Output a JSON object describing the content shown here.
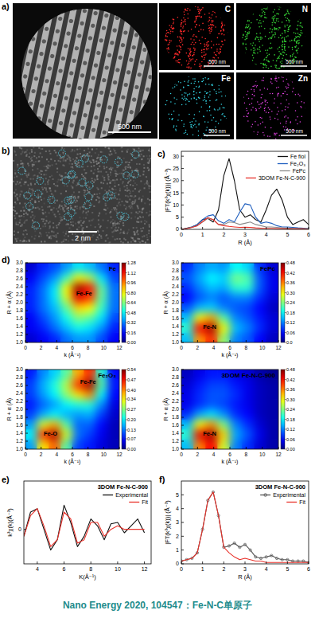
{
  "figure": {
    "panel_a": {
      "label": "a)",
      "scale_bar": "500 nm",
      "maps": [
        {
          "name": "C",
          "color": "#ff2a2a",
          "scale_bar": "500 nm"
        },
        {
          "name": "N",
          "color": "#33cc33",
          "scale_bar": "500 nm"
        },
        {
          "name": "Fe",
          "color": "#33d6e6",
          "scale_bar": "500 nm"
        },
        {
          "name": "Zn",
          "color": "#e040e0",
          "scale_bar": "500 nm"
        }
      ]
    },
    "panel_b": {
      "label": "b)",
      "scale_bar": "2 nm"
    },
    "footer": "Nano Energy 2020, 104547：Fe-N-C单原子"
  },
  "chart_data": [
    {
      "type": "line",
      "panel": "c)",
      "x_label": "R (Å)",
      "y_label": "|FT(k³χ(k))| (Å⁻³)",
      "legend": "upper right",
      "x": [
        0,
        0.25,
        0.5,
        0.75,
        1,
        1.25,
        1.5,
        1.75,
        2,
        2.25,
        2.5,
        2.75,
        3,
        3.25,
        3.5,
        3.75,
        4,
        4.25,
        4.5,
        4.75,
        5,
        5.25,
        5.5,
        5.75,
        6
      ],
      "xlim": [
        0,
        6
      ],
      "xticks": [
        0,
        1,
        2,
        3,
        4,
        5,
        6
      ],
      "ylim": [
        0,
        32
      ],
      "yticks": [
        0,
        5,
        10,
        15,
        20,
        25,
        30
      ],
      "series": [
        {
          "name": "Fe fiol",
          "color": "#111111",
          "values": [
            0,
            0.5,
            1,
            2,
            4,
            4.5,
            3,
            8,
            22,
            29,
            20,
            8,
            5,
            6,
            4,
            3,
            8,
            14,
            16.5,
            12,
            5,
            2,
            3,
            4,
            2
          ]
        },
        {
          "name": "Fe₂O₃",
          "color": "#1f5fbf",
          "values": [
            0,
            0.3,
            1,
            2,
            4,
            5.5,
            6,
            3.5,
            2.5,
            4,
            3,
            7,
            10.5,
            10,
            5,
            2.5,
            3,
            2.5,
            1.5,
            1,
            1,
            0.8,
            0.6,
            0.5,
            0.3
          ]
        },
        {
          "name": "FePc",
          "color": "#8c8c8c",
          "values": [
            0,
            0.3,
            0.8,
            1.5,
            3,
            4.5,
            4,
            2,
            2,
            3,
            2.8,
            2,
            2.5,
            3,
            2,
            1.5,
            1,
            1,
            0.8,
            0.6,
            0.5,
            0.4,
            0.3,
            0.3,
            0.2
          ]
        },
        {
          "name": "3DOM Fe-N-C-900",
          "color": "#e8312a",
          "values": [
            0,
            0.3,
            0.8,
            1.5,
            3.2,
            4.8,
            4,
            2,
            1.5,
            1.2,
            1,
            0.8,
            0.9,
            0.8,
            0.6,
            0.5,
            0.4,
            0.4,
            0.3,
            0.3,
            0.2,
            0.2,
            0.2,
            0.2,
            0.1
          ]
        }
      ]
    },
    {
      "type": "heatmap",
      "panel": "d)",
      "title": "Fe",
      "x_label": "k (Å⁻¹)",
      "y_label": "R + α (Å)",
      "x": [
        0.75,
        2.25,
        3.75,
        5.25,
        6.75,
        8.25,
        9.75,
        11.25
      ],
      "y": [
        1.125,
        1.375,
        1.625,
        1.875,
        2.125,
        2.375,
        2.625,
        2.875
      ],
      "xlim": [
        0,
        12
      ],
      "xticks": [
        0,
        2,
        4,
        6,
        8,
        10,
        12
      ],
      "ylim": [
        1,
        3
      ],
      "yticks": [
        {
          "value": 1,
          "label": "1.0"
        },
        1.2,
        1.4,
        1.6,
        1.8,
        {
          "value": 2,
          "label": "2.0"
        },
        2.2,
        2.4,
        2.6,
        2.8,
        {
          "value": 3,
          "label": "3.0"
        }
      ],
      "cells": [
        [
          0.1,
          0.15,
          0.2,
          0.3,
          0.35,
          0.35,
          0.25,
          0.15
        ],
        [
          0.15,
          0.2,
          0.3,
          0.4,
          0.5,
          0.45,
          0.35,
          0.2
        ],
        [
          0.15,
          0.25,
          0.35,
          0.5,
          0.65,
          0.6,
          0.45,
          0.25
        ],
        [
          0.2,
          0.3,
          0.4,
          0.6,
          0.85,
          0.8,
          0.55,
          0.3
        ],
        [
          0.2,
          0.3,
          0.45,
          0.75,
          1.15,
          1.05,
          0.6,
          0.3
        ],
        [
          0.2,
          0.3,
          0.45,
          0.8,
          1.25,
          1.1,
          0.6,
          0.3
        ],
        [
          0.15,
          0.25,
          0.35,
          0.55,
          0.8,
          0.7,
          0.45,
          0.25
        ],
        [
          0.1,
          0.2,
          0.25,
          0.35,
          0.45,
          0.4,
          0.3,
          0.2
        ]
      ],
      "colorbar": {
        "range": [
          0,
          1.28
        ],
        "ticks": [
          {
            "value": 0,
            "label": "0.00"
          },
          0.16,
          0.32,
          0.48,
          0.64,
          {
            "value": 0.8,
            "label": "0.80"
          },
          0.96,
          1.12,
          1.28
        ]
      },
      "annotations": [
        {
          "text": "Fe-Fe",
          "x": 7.5,
          "y": 2.25
        }
      ]
    },
    {
      "type": "heatmap",
      "title": "FePc",
      "x_label": "k (Å⁻¹)",
      "y_label": "R + α (Å)",
      "x": [
        0.75,
        2.25,
        3.75,
        5.25,
        6.75,
        8.25,
        9.75,
        11.25
      ],
      "y": [
        1.125,
        1.375,
        1.625,
        1.875,
        2.125,
        2.375,
        2.625,
        2.875
      ],
      "xlim": [
        0,
        12
      ],
      "xticks": [
        0,
        2,
        4,
        6,
        8,
        10,
        12
      ],
      "ylim": [
        1,
        3
      ],
      "yticks": [
        {
          "value": 1,
          "label": "1.0"
        },
        1.2,
        1.4,
        1.6,
        1.8,
        {
          "value": 2,
          "label": "2.0"
        },
        2.2,
        2.4,
        2.6,
        2.8,
        {
          "value": 3,
          "label": "3.0"
        }
      ],
      "cells": [
        [
          0.15,
          0.35,
          0.4,
          0.25,
          0.12,
          0.1,
          0.06,
          0.03
        ],
        [
          0.2,
          0.42,
          0.47,
          0.3,
          0.15,
          0.12,
          0.08,
          0.04
        ],
        [
          0.15,
          0.3,
          0.34,
          0.22,
          0.12,
          0.1,
          0.07,
          0.04
        ],
        [
          0.1,
          0.15,
          0.16,
          0.12,
          0.1,
          0.09,
          0.06,
          0.03
        ],
        [
          0.06,
          0.1,
          0.12,
          0.1,
          0.12,
          0.12,
          0.08,
          0.04
        ],
        [
          0.08,
          0.12,
          0.15,
          0.14,
          0.2,
          0.2,
          0.1,
          0.05
        ],
        [
          0.1,
          0.14,
          0.18,
          0.16,
          0.24,
          0.22,
          0.1,
          0.05
        ],
        [
          0.08,
          0.12,
          0.14,
          0.13,
          0.18,
          0.16,
          0.08,
          0.04
        ]
      ],
      "colorbar": {
        "range": [
          0,
          0.48
        ],
        "ticks": [
          {
            "value": 0,
            "label": "0.0"
          },
          0.06,
          0.12,
          0.18,
          0.24,
          {
            "value": 0.3,
            "label": "0.30"
          },
          0.36,
          0.42,
          0.48
        ]
      },
      "annotations": [
        {
          "text": "Fe-N",
          "x": 3.5,
          "y": 1.4
        }
      ]
    },
    {
      "type": "heatmap",
      "title": "Fe₂O₃",
      "x_label": "k (Å⁻¹)",
      "y_label": "R + α (Å)",
      "x": [
        0.75,
        2.25,
        3.75,
        5.25,
        6.75,
        8.25,
        9.75,
        11.25
      ],
      "y": [
        1.125,
        1.375,
        1.625,
        1.875,
        2.125,
        2.375,
        2.625,
        2.875
      ],
      "xlim": [
        0,
        12
      ],
      "xticks": [
        0,
        2,
        4,
        6,
        8,
        10,
        12
      ],
      "ylim": [
        1,
        3
      ],
      "yticks": [
        {
          "value": 1,
          "label": "1.0"
        },
        1.2,
        1.4,
        1.6,
        1.8,
        {
          "value": 2,
          "label": "2.0"
        },
        2.2,
        2.4,
        2.6,
        2.8,
        {
          "value": 3,
          "label": "3.0"
        }
      ],
      "cells": [
        [
          0.15,
          0.35,
          0.42,
          0.25,
          0.1,
          0.08,
          0.05,
          0.03
        ],
        [
          0.2,
          0.45,
          0.52,
          0.32,
          0.13,
          0.1,
          0.06,
          0.03
        ],
        [
          0.15,
          0.32,
          0.38,
          0.25,
          0.12,
          0.12,
          0.07,
          0.03
        ],
        [
          0.1,
          0.16,
          0.2,
          0.16,
          0.15,
          0.16,
          0.1,
          0.04
        ],
        [
          0.08,
          0.12,
          0.15,
          0.2,
          0.22,
          0.22,
          0.14,
          0.05
        ],
        [
          0.1,
          0.15,
          0.2,
          0.28,
          0.35,
          0.4,
          0.2,
          0.07
        ],
        [
          0.1,
          0.16,
          0.22,
          0.3,
          0.45,
          0.53,
          0.25,
          0.08
        ],
        [
          0.08,
          0.14,
          0.18,
          0.25,
          0.38,
          0.45,
          0.22,
          0.07
        ]
      ],
      "colorbar": {
        "range": [
          0,
          0.54
        ],
        "ticks": [
          {
            "value": 0,
            "label": "0.00"
          },
          0.07,
          0.13,
          {
            "value": 0.2,
            "label": "0.20"
          },
          0.27,
          0.34,
          {
            "value": 0.4,
            "label": "0.40"
          },
          0.47,
          0.54
        ]
      },
      "annotations": [
        {
          "text": "Fe-O",
          "x": 3.2,
          "y": 1.4
        },
        {
          "text": "Fe-Fe",
          "x": 8,
          "y": 2.7
        }
      ]
    },
    {
      "type": "heatmap",
      "title": "3DOM Fe-N-C-900",
      "x_label": "k (Å⁻¹)",
      "y_label": "R + α (Å)",
      "x": [
        0.75,
        2.25,
        3.75,
        5.25,
        6.75,
        8.25,
        9.75,
        11.25
      ],
      "y": [
        1.125,
        1.375,
        1.625,
        1.875,
        2.125,
        2.375,
        2.625,
        2.875
      ],
      "xlim": [
        0,
        12
      ],
      "xticks": [
        0,
        2,
        4,
        6,
        8,
        10,
        12
      ],
      "ylim": [
        1,
        3
      ],
      "yticks": [
        {
          "value": 1,
          "label": "1.0"
        },
        1.2,
        1.4,
        1.6,
        1.8,
        {
          "value": 2,
          "label": "2.0"
        },
        2.2,
        2.4,
        2.6,
        2.8,
        {
          "value": 3,
          "label": "3.0"
        }
      ],
      "cells": [
        [
          0.15,
          0.36,
          0.42,
          0.28,
          0.12,
          0.08,
          0.04,
          0.02
        ],
        [
          0.2,
          0.43,
          0.47,
          0.32,
          0.14,
          0.1,
          0.05,
          0.02
        ],
        [
          0.15,
          0.3,
          0.35,
          0.24,
          0.12,
          0.08,
          0.04,
          0.02
        ],
        [
          0.08,
          0.14,
          0.17,
          0.13,
          0.08,
          0.06,
          0.03,
          0.02
        ],
        [
          0.05,
          0.08,
          0.1,
          0.09,
          0.07,
          0.05,
          0.03,
          0.02
        ],
        [
          0.05,
          0.08,
          0.1,
          0.1,
          0.08,
          0.05,
          0.03,
          0.02
        ],
        [
          0.04,
          0.07,
          0.09,
          0.09,
          0.07,
          0.05,
          0.03,
          0.02
        ],
        [
          0.03,
          0.05,
          0.07,
          0.07,
          0.05,
          0.04,
          0.02,
          0.01
        ]
      ],
      "colorbar": {
        "range": [
          0,
          0.48
        ],
        "ticks": [
          {
            "value": 0,
            "label": "0.00"
          },
          0.06,
          0.12,
          0.18,
          0.24,
          {
            "value": 0.3,
            "label": "0.30"
          },
          0.36,
          0.42,
          0.48
        ]
      },
      "annotations": [
        {
          "text": "Fe-N",
          "x": 3.5,
          "y": 1.4
        }
      ]
    },
    {
      "type": "line",
      "panel": "e)",
      "title": "3DOM Fe-N-C-900",
      "x_label": "K(Å⁻¹)",
      "y_label": "k³χ(k)(Å⁻³)",
      "legend": "upper right",
      "x": [
        3,
        3.5,
        4,
        4.5,
        5,
        5.5,
        6,
        6.5,
        7,
        7.5,
        8,
        8.5,
        9,
        9.5,
        10,
        10.5,
        11,
        11.5,
        12
      ],
      "xlim": [
        3,
        12.5
      ],
      "xticks": [
        4,
        6,
        8,
        10,
        12
      ],
      "ylim": [
        -5,
        7
      ],
      "yticks": [
        0
      ],
      "series": [
        {
          "name": "Experimental",
          "color": "#111111",
          "values": [
            -1,
            2.5,
            3,
            0,
            -3,
            -1.5,
            3.5,
            1,
            -2.5,
            -1,
            1.5,
            0.5,
            -1.5,
            0.8,
            1,
            -0.5,
            0.5,
            1.5,
            -0.5
          ]
        },
        {
          "name": "Fit",
          "color": "#e8312a",
          "values": [
            -1,
            2,
            3,
            0.5,
            -2.5,
            -1.5,
            2.5,
            1.5,
            -2,
            -1.5,
            1,
            1,
            -1,
            0,
            0.5,
            0,
            0,
            0,
            0
          ]
        }
      ]
    },
    {
      "type": "line",
      "panel": "f)",
      "title": "3DOM Fe-N-C-900",
      "x_label": "R (Å)",
      "y_label": "|FT(k³χ(k))| (Å⁻³)",
      "legend": "upper right",
      "x": [
        0,
        0.25,
        0.5,
        0.75,
        1,
        1.25,
        1.5,
        1.75,
        2,
        2.25,
        2.5,
        2.75,
        3,
        3.25,
        3.5,
        3.75,
        4,
        4.25,
        4.5,
        4.75,
        5,
        5.25,
        5.5,
        5.75,
        6
      ],
      "xlim": [
        0,
        6
      ],
      "xticks": [
        0,
        1,
        2,
        3,
        4,
        5,
        6
      ],
      "ylim": [
        0,
        6
      ],
      "yticks": [
        0,
        1,
        2,
        3,
        4,
        5
      ],
      "series": [
        {
          "name": "Experimental",
          "color": "#555555",
          "marker": "circle",
          "values": [
            0.2,
            0.3,
            0.4,
            0.8,
            2.5,
            4.6,
            5.2,
            3.5,
            1.2,
            1.3,
            1.5,
            1.2,
            1.4,
            1.0,
            0.5,
            0.4,
            0.5,
            0.6,
            0.4,
            0.3,
            0.3,
            0.2,
            0.2,
            0.2,
            0.1
          ]
        },
        {
          "name": "Fit",
          "color": "#e8312a",
          "values": [
            0.2,
            0.3,
            0.4,
            0.8,
            2.5,
            4.6,
            5.2,
            3.5,
            1.2,
            0.8,
            0.5,
            0.3,
            0.4,
            0.3,
            0.2,
            0.2,
            0.1,
            0.1,
            0.1,
            0.1,
            0.1,
            0.1,
            0.1,
            0.1,
            0.1
          ]
        }
      ]
    }
  ]
}
